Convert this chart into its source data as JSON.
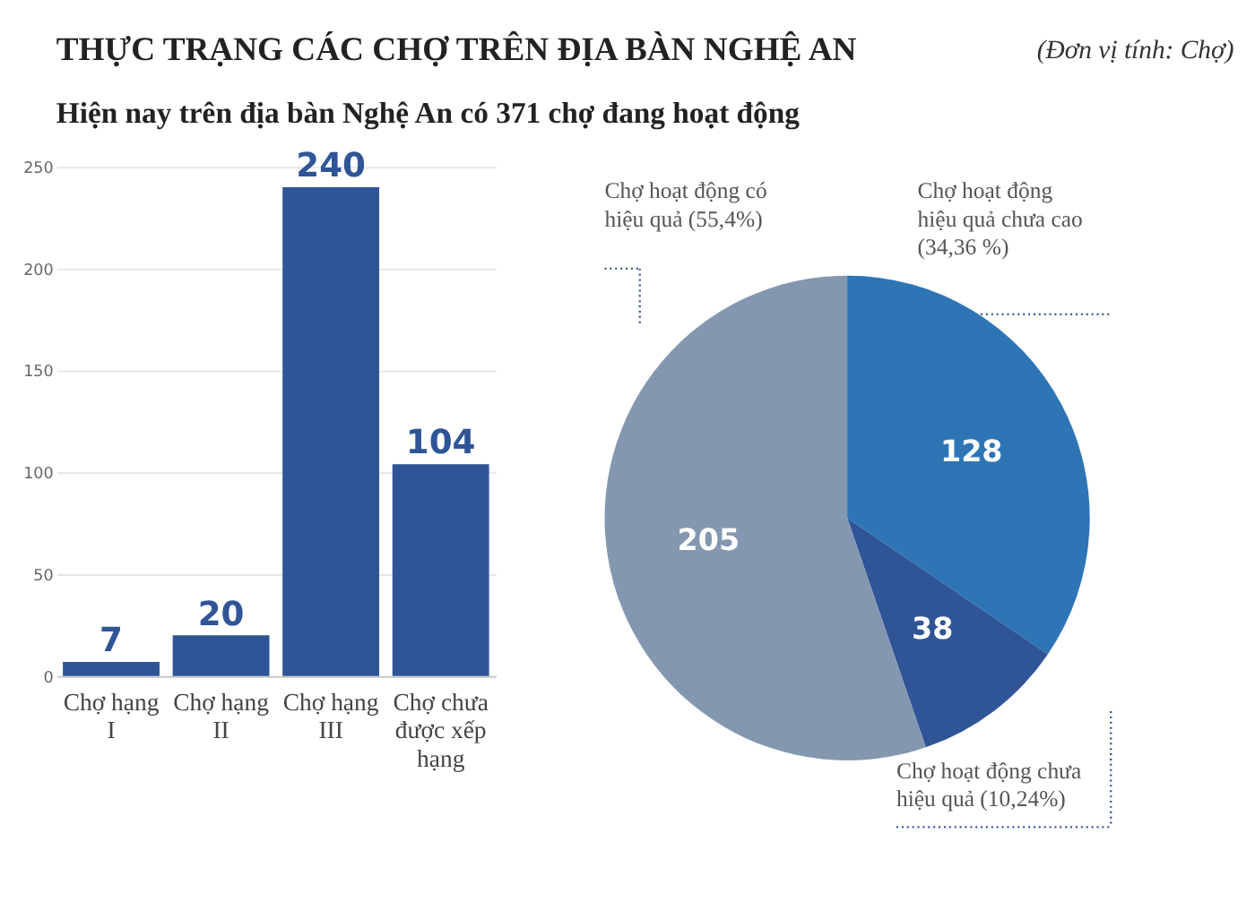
{
  "chart_data": [
    {
      "type": "bar",
      "title": "THỰC TRẠNG CÁC CHỢ TRÊN ĐỊA BÀN NGHỆ AN",
      "subtitle": "Hiện nay trên địa bàn Nghệ An có 371 chợ đang hoạt động",
      "annotations": [
        "(Đơn vị tính: Chợ)"
      ],
      "categories": [
        "Chợ hạng I",
        "Chợ hạng II",
        "Chợ hạng III",
        "Chợ chưa được xếp hạng"
      ],
      "values": [
        7,
        20,
        240,
        104
      ],
      "color": "#2f5597",
      "ylim": [
        0,
        250
      ],
      "yticks": [
        0,
        50,
        100,
        150,
        200,
        250
      ],
      "grid": "y",
      "data_labels": true
    },
    {
      "type": "pie",
      "categories": [
        "Chợ hoạt động hiệu quả chưa cao (34,36 %)",
        "Chợ hoạt động chưa hiệu quả (10,24%)",
        "Chợ hoạt động có hiệu quả (55,4%)"
      ],
      "values": [
        128,
        38,
        205
      ],
      "colors": [
        "#2e75b6",
        "#2f5597",
        "#8497b0"
      ],
      "data_labels": true
    }
  ]
}
